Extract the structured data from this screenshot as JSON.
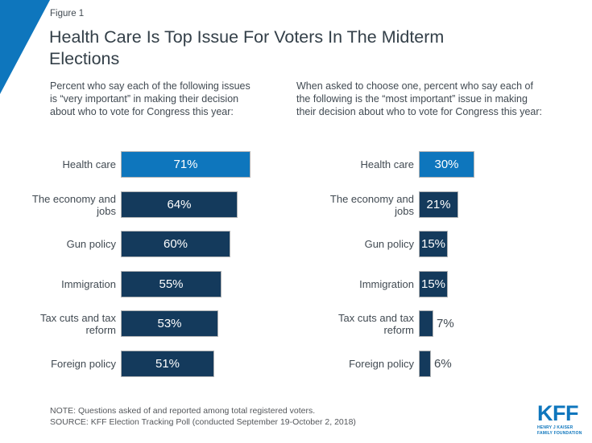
{
  "figure_label": "Figure 1",
  "title": "Health Care Is Top Issue For Voters In The Midterm\nElections",
  "note": "NOTE: Questions asked of and reported among total registered voters.",
  "source": "SOURCE: KFF Election Tracking Poll (conducted September 19-October 2, 2018)",
  "logo": {
    "text": "KFF",
    "line1": "HENRY J KAISER",
    "line2": "FAMILY FOUNDATION"
  },
  "colors": {
    "highlight_blue": "#0e76bd",
    "navy": "#143a5c",
    "bar_border": "#b0b2b4",
    "title_text": "#333f48",
    "body_text": "#414a52",
    "note_text": "#54575b"
  },
  "chart_data": [
    {
      "type": "bar",
      "orientation": "horizontal",
      "subtitle": "Percent who say each of the following issues\nis “very important” in making their decision\nabout who to vote for Congress this year:",
      "categories": [
        "Health care",
        "The economy and jobs",
        "Gun policy",
        "Immigration",
        "Tax cuts and tax reform",
        "Foreign policy"
      ],
      "values": [
        71,
        64,
        60,
        55,
        53,
        51
      ],
      "value_labels": [
        "71%",
        "64%",
        "60%",
        "55%",
        "53%",
        "51%"
      ],
      "highlight_index": 0,
      "highlight_category": "Health care",
      "xlim": [
        0,
        100
      ],
      "grid": false,
      "legend": false
    },
    {
      "type": "bar",
      "orientation": "horizontal",
      "subtitle": "When asked to choose one, percent who say each of\nthe following is the “most important” issue in making\ntheir decision about who to vote for Congress this year:",
      "categories": [
        "Health care",
        "The economy and jobs",
        "Gun policy",
        "Immigration",
        "Tax cuts and tax reform",
        "Foreign policy"
      ],
      "values": [
        30,
        21,
        15,
        15,
        7,
        6
      ],
      "value_labels": [
        "30%",
        "21%",
        "15%",
        "15%",
        "7%",
        "6%"
      ],
      "highlight_index": 0,
      "highlight_category": "Health care",
      "xlim": [
        0,
        100
      ],
      "grid": false,
      "legend": false
    }
  ]
}
